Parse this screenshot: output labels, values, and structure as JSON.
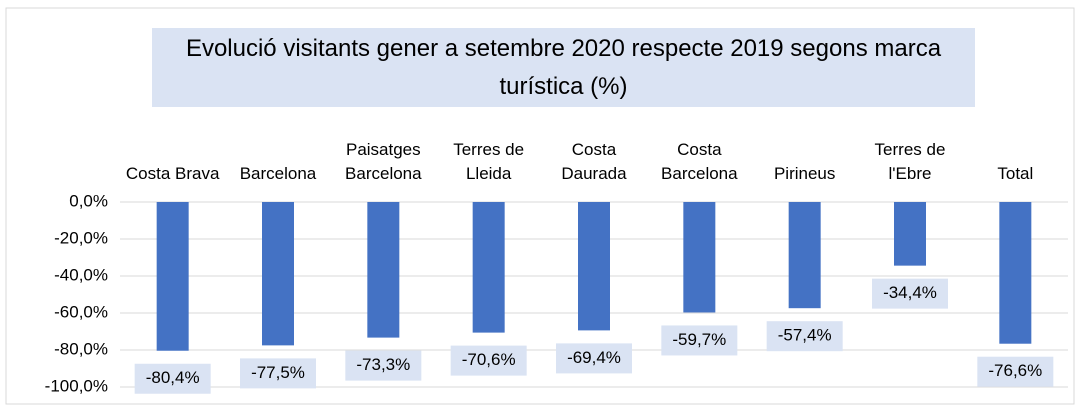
{
  "chart_data": {
    "type": "bar",
    "title": "Evolució visitants gener a setembre 2020 respecte 2019 segons marca turística (%)",
    "categories": [
      "Costa Brava",
      "Barcelona",
      "Paisatges Barcelona",
      "Terres de Lleida",
      "Costa Daurada",
      "Costa Barcelona",
      "Pirineus",
      "Terres de l'Ebre",
      "Total"
    ],
    "values": [
      -80.4,
      -77.5,
      -73.3,
      -70.6,
      -69.4,
      -59.7,
      -57.4,
      -34.4,
      -76.6
    ],
    "value_labels": [
      "-80,4%",
      "-77,5%",
      "-73,3%",
      "-70,6%",
      "-69,4%",
      "-59,7%",
      "-57,4%",
      "-34,4%",
      "-76,6%"
    ],
    "color": "#4472c4",
    "ylim": [
      -100,
      0
    ],
    "yticks": [
      {
        "value": 0,
        "label": "0,0%"
      },
      {
        "value": -20,
        "label": "-20,0%"
      },
      {
        "value": -40,
        "label": "-40,0%"
      },
      {
        "value": -60,
        "label": "-60,0%"
      },
      {
        "value": -80,
        "label": "-80,0%"
      },
      {
        "value": -100,
        "label": "-100,0%"
      }
    ],
    "grid": true
  }
}
